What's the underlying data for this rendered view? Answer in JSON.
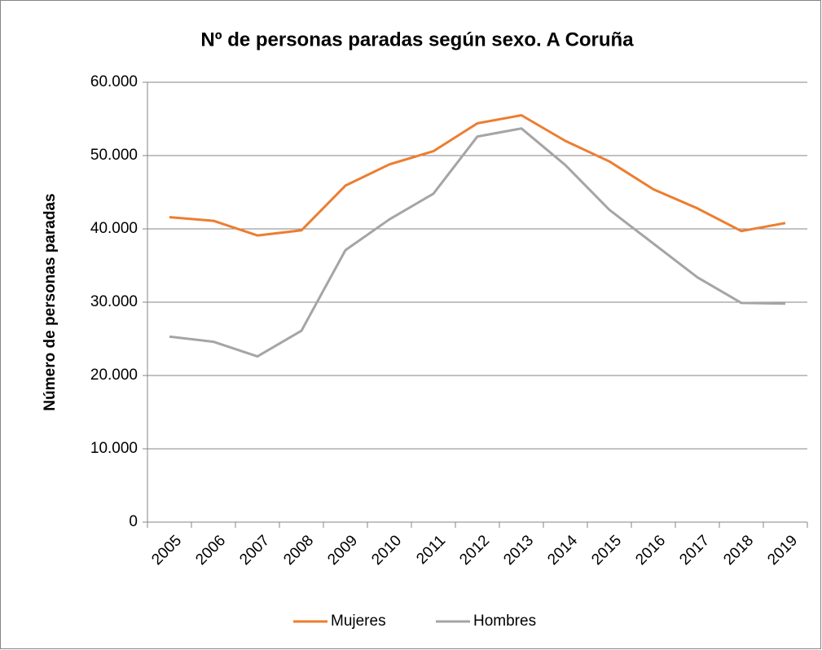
{
  "chart_data": {
    "type": "line",
    "title": "Nº de personas paradas según sexo. A Coruña",
    "y_label": "Número de personas paradas",
    "categories": [
      "2005",
      "2006",
      "2007",
      "2008",
      "2009",
      "2010",
      "2011",
      "2012",
      "2013",
      "2014",
      "2015",
      "2016",
      "2017",
      "2018",
      "2019"
    ],
    "series": [
      {
        "name": "Mujeres",
        "color": "#ed7d31",
        "values": [
          41600,
          41100,
          39100,
          39800,
          45900,
          48800,
          50600,
          54400,
          55500,
          52000,
          49200,
          45400,
          42800,
          39700,
          40800
        ]
      },
      {
        "name": "Hombres",
        "color": "#a5a5a5",
        "values": [
          25300,
          24600,
          22600,
          26100,
          37100,
          41300,
          44800,
          52600,
          53700,
          48700,
          42600,
          38000,
          33400,
          29900,
          29800
        ]
      }
    ],
    "ylim": [
      0,
      60000
    ],
    "yticks": [
      0,
      {
        "value": 10000,
        "label": "10.000"
      },
      {
        "value": 20000,
        "label": "20.000"
      },
      {
        "value": 30000,
        "label": "30.000"
      },
      {
        "value": 40000,
        "label": "40.000"
      },
      {
        "value": 50000,
        "label": "50.000"
      },
      {
        "value": 60000,
        "label": "60.000"
      }
    ],
    "grid": true,
    "legend": "bottom"
  }
}
